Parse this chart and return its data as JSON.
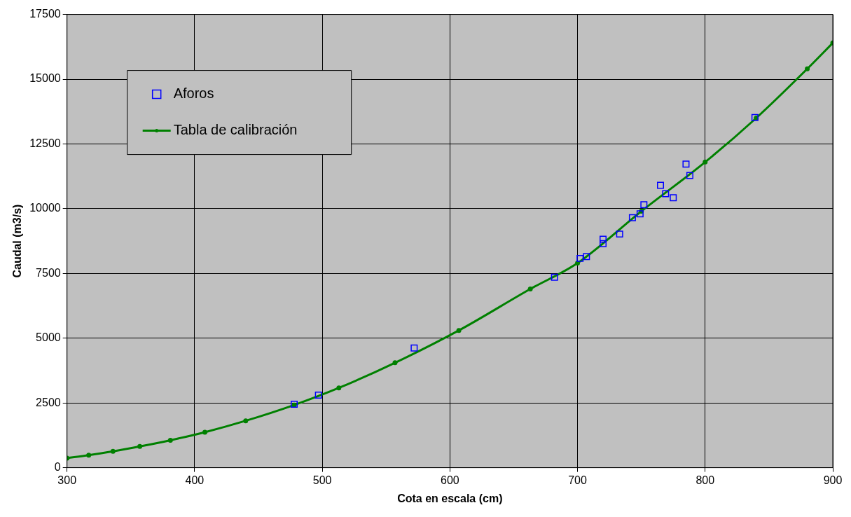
{
  "chart_data": {
    "type": "scatter",
    "xlabel": "Cota en escala (cm)",
    "ylabel": "Caudal (m3/s)",
    "xlim": [
      300,
      900
    ],
    "xticks": [
      300,
      400,
      500,
      600,
      700,
      800,
      900
    ],
    "ylim": [
      0,
      17500
    ],
    "yticks": [
      0,
      2500,
      5000,
      7500,
      10000,
      12500,
      15000,
      17500
    ],
    "grid": true,
    "legend": "top left",
    "series": [
      {
        "name": "Aforos",
        "marker": "square",
        "color": "#0000ff",
        "x": [
          478,
          497,
          572,
          682,
          702,
          707,
          720,
          720,
          733,
          743,
          749,
          752,
          765,
          769,
          775,
          785,
          788,
          839
        ],
        "values": [
          2450,
          2800,
          4620,
          7350,
          8080,
          8150,
          8650,
          8820,
          9020,
          9650,
          9800,
          10150,
          10900,
          10580,
          10420,
          11720,
          11280,
          13520
        ]
      },
      {
        "name": "Tabla de calibración",
        "type": "line",
        "marker": "circle",
        "line_style": "solid",
        "color": "#008000",
        "x": [
          300,
          317,
          336,
          357,
          381,
          408,
          440,
          478,
          513,
          557,
          607,
          663,
          700,
          750,
          800,
          840,
          880,
          900
        ],
        "values": [
          370,
          480,
          630,
          820,
          1060,
          1370,
          1810,
          2420,
          3080,
          4050,
          5300,
          6900,
          7900,
          9900,
          11800,
          13500,
          15400,
          16400
        ]
      }
    ]
  }
}
